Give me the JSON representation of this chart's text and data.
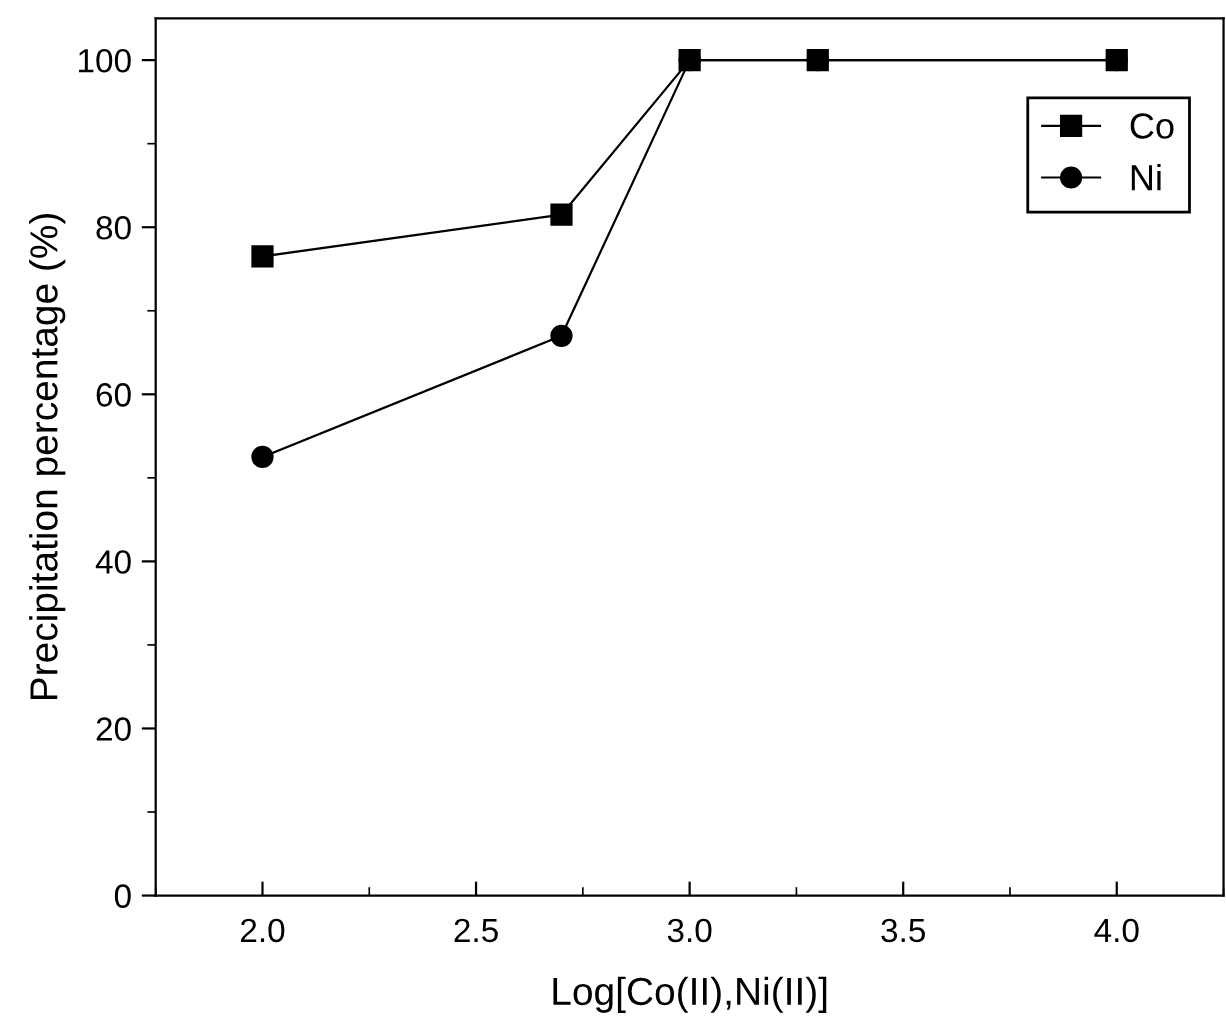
{
  "chart_data": {
    "type": "line",
    "xlabel": "Log[Co(II),Ni(II)]",
    "ylabel": "Precipitation percentage (%)",
    "xlim": [
      1.75,
      4.25
    ],
    "xticks": [
      {
        "value": 2,
        "label": "2.0"
      },
      2.5,
      {
        "value": 3,
        "label": "3.0"
      },
      3.5,
      {
        "value": 4,
        "label": "4.0"
      }
    ],
    "ylim": [
      0,
      105
    ],
    "yticks": [
      0,
      20,
      40,
      60,
      80,
      100
    ],
    "grid": false,
    "legend": "top right",
    "series": [
      {
        "name": "Co",
        "color": "#000000",
        "marker": "square",
        "x": [
          2.0,
          2.7,
          3.0,
          3.3,
          4.0
        ],
        "values": [
          76.5,
          81.5,
          100,
          100,
          100
        ]
      },
      {
        "name": "Ni",
        "color": "#000000",
        "marker": "circle",
        "x": [
          2.0,
          2.7,
          3.0,
          3.3,
          4.0
        ],
        "values": [
          52.5,
          67,
          100,
          100,
          100
        ]
      }
    ]
  }
}
